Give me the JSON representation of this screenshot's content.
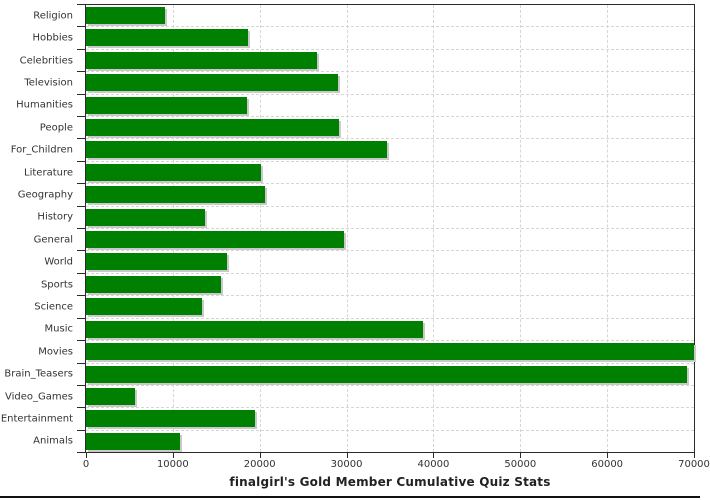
{
  "chart_data": {
    "type": "bar",
    "orientation": "horizontal",
    "title": "finalgirl's Gold Member Cumulative Quiz Stats",
    "categories": [
      "Religion",
      "Hobbies",
      "Celebrities",
      "Television",
      "Humanities",
      "People",
      "For_Children",
      "Literature",
      "Geography",
      "History",
      "General",
      "World",
      "Sports",
      "Science",
      "Music",
      "Movies",
      "Brain_Teasers",
      "Video_Games",
      "Entertainment",
      "Animals"
    ],
    "values": [
      9100,
      18700,
      26600,
      29000,
      18500,
      29100,
      34600,
      20100,
      20600,
      13700,
      29700,
      16200,
      15600,
      13400,
      38800,
      70100,
      69200,
      5600,
      19400,
      10800
    ],
    "xlabel": "",
    "ylabel": "",
    "xlim": [
      0,
      70000
    ],
    "x_ticks": [
      0,
      10000,
      20000,
      30000,
      40000,
      50000,
      60000,
      70000
    ],
    "grid": true,
    "legend": "none",
    "colors": {
      "bar": "#008000",
      "bar_shadow": "#c9c9c9",
      "grid": "#d6d6d6",
      "axis": "#2b2b2b",
      "text": "#333333"
    }
  }
}
